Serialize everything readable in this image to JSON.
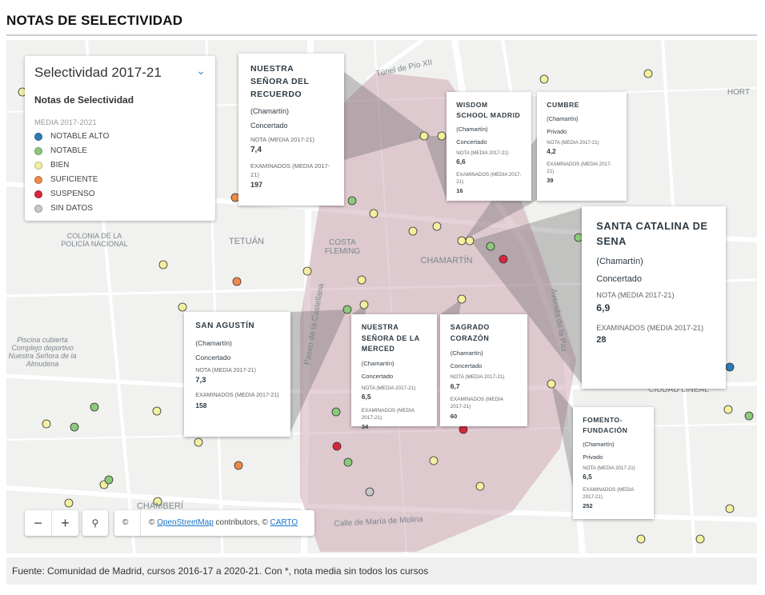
{
  "header": {
    "title": "NOTAS DE SELECTIVIDAD"
  },
  "legend": {
    "title": "Selectividad 2017-21",
    "subtitle": "Notas de Selectividad",
    "group": "MEDIA 2017-2021",
    "items": [
      {
        "label": "NOTABLE ALTO",
        "color": "#2c7bb6"
      },
      {
        "label": "NOTABLE",
        "color": "#8cc97a"
      },
      {
        "label": "BIEN",
        "color": "#f3f0a0"
      },
      {
        "label": "SUFICIENTE",
        "color": "#f08a4b"
      },
      {
        "label": "SUSPENSO",
        "color": "#d7263d"
      },
      {
        "label": "SIN DATOS",
        "color": "#c8c8c8"
      }
    ]
  },
  "map_labels": [
    "Túnel de Pío XII",
    "TETUÁN",
    "COSTA FLEMING",
    "CHAMARTÍN",
    "COLONIA DE LA POLICÍA NACIONAL",
    "CHAMBERÍ",
    "Paseo de la Castellana",
    "Avenida de la Paz",
    "Calle de María de Molina",
    "Piscina cubierta Complejo deportivo Nuestra Señora de la Almudena",
    "CIUDAD LINEAL",
    "HORT"
  ],
  "popups": [
    {
      "name": "NUESTRA SEÑORA DEL RECUERDO",
      "district": "(Chamartín)",
      "kind": "Concertado",
      "grade_label": "NOTA (MEDIA 2017-21)",
      "grade": "7,4",
      "exams_label": "EXAMINADOS (MEDIA 2017-21)",
      "exams": 197
    },
    {
      "name": "WISDOM SCHOOL MADRID",
      "district": "(Chamartín)",
      "kind": "Concertado",
      "grade_label": "NOTA (MEDIA 2017-21)",
      "grade": "6,6",
      "exams_label": "EXAMINADOS (MEDIA 2017-21)",
      "exams": 16
    },
    {
      "name": "CUMBRE",
      "district": "(Chamartín)",
      "kind": "Privado",
      "grade_label": "NOTA (MEDIA 2017-21)",
      "grade": "4,2",
      "exams_label": "EXAMINADOS (MEDIA 2017-21)",
      "exams": 39
    },
    {
      "name": "SANTA CATALINA DE SENA",
      "district": "(Chamartín)",
      "kind": "Concertado",
      "grade_label": "NOTA (MEDIA 2017-21)",
      "grade": "6,9",
      "exams_label": "EXAMINADOS (MEDIA 2017-21)",
      "exams": 28
    },
    {
      "name": "SAN AGUSTÍN",
      "district": "(Chamartín)",
      "kind": "Concertado",
      "grade_label": "NOTA (MEDIA 2017-21)",
      "grade": "7,3",
      "exams_label": "EXAMINADOS (MEDIA 2017-21)",
      "exams": 158
    },
    {
      "name": "NUESTRA SEÑORA DE LA MERCED",
      "district": "(Chamartín)",
      "kind": "Concertado",
      "grade_label": "NOTA (MEDIA 2017-21)",
      "grade": "6,5",
      "exams_label": "EXAMINADOS (MEDIA 2017-21)",
      "exams": 34
    },
    {
      "name": "SAGRADO CORAZÓN",
      "district": "(Chamartín)",
      "kind": "Concertado",
      "grade_label": "NOTA (MEDIA 2017-21)",
      "grade": "6,7",
      "exams_label": "EXAMINADOS (MEDIA 2017-21)",
      "exams": 60
    },
    {
      "name": "FOMENTO-FUNDACIÓN",
      "district": "(Chamartín)",
      "kind": "Privado",
      "grade_label": "NOTA (MEDIA 2017-21)",
      "grade": "6,5",
      "exams_label": "EXAMINADOS (MEDIA 2017-21)",
      "exams": 252
    }
  ],
  "attribution": {
    "info": "©",
    "prefix": "©",
    "osm": "OpenStreetMap",
    "middle": "contributors, ©",
    "carto": "CARTO"
  },
  "footer": {
    "source": "Fuente: Comunidad de Madrid, cursos 2016-17 a 2020-21. Con *, nota media sin todos los cursos"
  }
}
